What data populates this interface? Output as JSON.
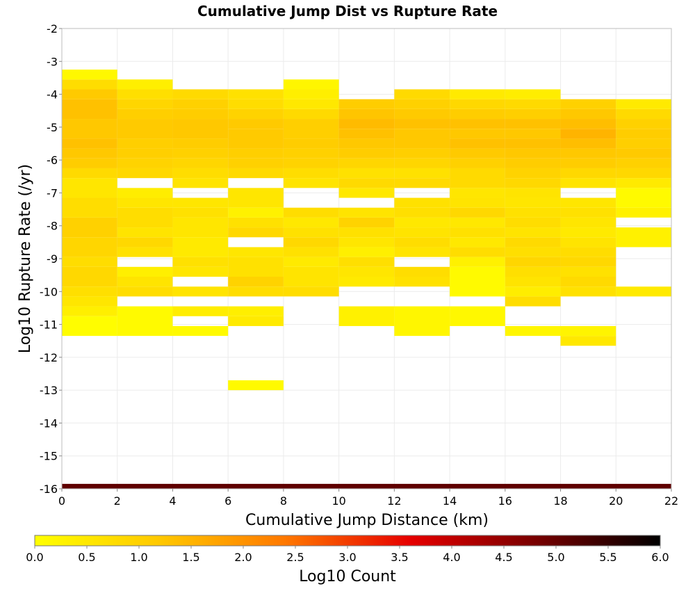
{
  "chart_data": {
    "type": "heatmap",
    "title": "Cumulative Jump Dist vs Rupture Rate",
    "xlabel": "Cumulative Jump Distance (km)",
    "ylabel": "Log10 Rupture Rate (/yr)",
    "xlim": [
      0,
      22
    ],
    "ylim": [
      -16,
      -2
    ],
    "x_ticks": [
      "0",
      "2",
      "4",
      "6",
      "8",
      "10",
      "12",
      "14",
      "16",
      "18",
      "20",
      "22"
    ],
    "y_ticks": [
      "-2",
      "-3",
      "-4",
      "-5",
      "-6",
      "-7",
      "-8",
      "-9",
      "-10",
      "-11",
      "-12",
      "-13",
      "-14",
      "-15",
      "-16"
    ],
    "x_bin_width": 2,
    "y_bin_height": 0.3,
    "grid": true,
    "colorbar": {
      "label": "Log10 Count",
      "min": 0.0,
      "max": 6.0,
      "ticks": [
        "0.0",
        "0.5",
        "1.0",
        "1.5",
        "2.0",
        "2.5",
        "3.0",
        "3.5",
        "4.0",
        "4.5",
        "5.0",
        "5.5",
        "6.0"
      ],
      "colors": [
        "#ffff00",
        "#ffc800",
        "#ff7800",
        "#e60000",
        "#780000",
        "#000000"
      ]
    },
    "bottom_band": {
      "x": [
        0,
        22
      ],
      "y": [
        -16.0,
        -15.85
      ],
      "log10_count": 5.05
    },
    "columns": [
      {
        "x": [
          0,
          2
        ],
        "cells": [
          [
            -11.35,
            -10.75,
            0.05
          ],
          [
            -10.75,
            -10.45,
            0.35
          ],
          [
            -10.45,
            -10.15,
            0.55
          ],
          [
            -10.15,
            -9.85,
            0.7
          ],
          [
            -9.85,
            -9.25,
            0.85
          ],
          [
            -9.25,
            -8.95,
            0.75
          ],
          [
            -8.95,
            -8.35,
            0.9
          ],
          [
            -8.35,
            -7.75,
            1.0
          ],
          [
            -7.75,
            -7.15,
            0.75
          ],
          [
            -7.15,
            -6.55,
            0.55
          ],
          [
            -6.55,
            -6.25,
            0.8
          ],
          [
            -6.25,
            -5.95,
            1.1
          ],
          [
            -5.95,
            -5.65,
            1.2
          ],
          [
            -5.65,
            -5.35,
            1.3
          ],
          [
            -5.35,
            -4.75,
            1.2
          ],
          [
            -4.75,
            -4.15,
            1.3
          ],
          [
            -4.15,
            -3.85,
            1.15
          ],
          [
            -3.85,
            -3.55,
            0.75
          ],
          [
            -3.55,
            -3.25,
            0.15
          ]
        ]
      },
      {
        "x": [
          2,
          4
        ],
        "cells": [
          [
            -11.35,
            -10.45,
            0.1
          ],
          [
            -10.15,
            -9.85,
            0.75
          ],
          [
            -9.85,
            -9.55,
            0.6
          ],
          [
            -9.55,
            -9.25,
            0.35
          ],
          [
            -8.95,
            -8.65,
            0.65
          ],
          [
            -8.65,
            -8.35,
            0.85
          ],
          [
            -8.35,
            -8.05,
            0.6
          ],
          [
            -8.05,
            -7.45,
            0.75
          ],
          [
            -7.45,
            -7.15,
            0.55
          ],
          [
            -7.15,
            -6.85,
            0.4
          ],
          [
            -6.55,
            -6.25,
            0.85
          ],
          [
            -6.25,
            -5.95,
            0.95
          ],
          [
            -5.95,
            -5.65,
            1.05
          ],
          [
            -5.65,
            -5.35,
            1.05
          ],
          [
            -5.35,
            -4.75,
            1.15
          ],
          [
            -4.75,
            -4.45,
            1.05
          ],
          [
            -4.45,
            -4.15,
            0.9
          ],
          [
            -4.15,
            -3.85,
            0.7
          ],
          [
            -3.85,
            -3.55,
            0.35
          ]
        ]
      },
      {
        "x": [
          4,
          6
        ],
        "cells": [
          [
            -11.35,
            -11.05,
            0.1
          ],
          [
            -10.75,
            -10.45,
            0.4
          ],
          [
            -10.15,
            -9.85,
            0.6
          ],
          [
            -9.55,
            -9.25,
            0.55
          ],
          [
            -9.25,
            -8.95,
            0.65
          ],
          [
            -8.95,
            -8.35,
            0.45
          ],
          [
            -8.35,
            -7.75,
            0.55
          ],
          [
            -7.75,
            -7.45,
            0.65
          ],
          [
            -7.45,
            -7.15,
            0.55
          ],
          [
            -6.85,
            -6.55,
            0.6
          ],
          [
            -6.55,
            -6.25,
            0.75
          ],
          [
            -6.25,
            -5.95,
            0.9
          ],
          [
            -5.95,
            -5.65,
            1.0
          ],
          [
            -5.65,
            -5.35,
            1.1
          ],
          [
            -5.35,
            -4.75,
            1.2
          ],
          [
            -4.75,
            -4.45,
            1.1
          ],
          [
            -4.45,
            -4.15,
            1.0
          ],
          [
            -4.15,
            -3.85,
            0.8
          ]
        ]
      },
      {
        "x": [
          6,
          8
        ],
        "cells": [
          [
            -13.0,
            -12.7,
            0.1
          ],
          [
            -11.05,
            -10.75,
            0.45
          ],
          [
            -10.75,
            -10.45,
            0.35
          ],
          [
            -10.15,
            -9.85,
            0.75
          ],
          [
            -9.85,
            -9.55,
            0.95
          ],
          [
            -9.55,
            -8.95,
            0.65
          ],
          [
            -8.95,
            -8.65,
            0.55
          ],
          [
            -8.35,
            -8.05,
            0.85
          ],
          [
            -8.05,
            -7.75,
            0.65
          ],
          [
            -7.75,
            -7.45,
            0.3
          ],
          [
            -7.45,
            -6.85,
            0.55
          ],
          [
            -6.55,
            -6.25,
            0.8
          ],
          [
            -6.25,
            -5.95,
            1.0
          ],
          [
            -5.95,
            -5.65,
            1.05
          ],
          [
            -5.65,
            -5.05,
            1.15
          ],
          [
            -5.05,
            -4.75,
            1.15
          ],
          [
            -4.75,
            -4.45,
            0.95
          ],
          [
            -4.45,
            -4.15,
            0.75
          ],
          [
            -4.15,
            -3.85,
            0.65
          ]
        ]
      },
      {
        "x": [
          8,
          10
        ],
        "cells": [
          [
            -10.15,
            -9.85,
            0.75
          ],
          [
            -9.85,
            -9.25,
            0.6
          ],
          [
            -9.25,
            -8.95,
            0.45
          ],
          [
            -8.95,
            -8.65,
            0.65
          ],
          [
            -8.65,
            -8.35,
            0.85
          ],
          [
            -8.35,
            -8.05,
            0.65
          ],
          [
            -8.05,
            -7.75,
            0.5
          ],
          [
            -7.75,
            -7.45,
            0.75
          ],
          [
            -6.85,
            -6.55,
            0.6
          ],
          [
            -6.55,
            -6.25,
            0.75
          ],
          [
            -6.25,
            -5.95,
            0.95
          ],
          [
            -5.95,
            -5.65,
            1.0
          ],
          [
            -5.65,
            -5.35,
            1.1
          ],
          [
            -5.35,
            -4.75,
            1.05
          ],
          [
            -4.75,
            -4.45,
            0.8
          ],
          [
            -4.45,
            -4.15,
            0.5
          ],
          [
            -4.15,
            -3.85,
            0.35
          ],
          [
            -3.85,
            -3.55,
            0.2
          ]
        ]
      },
      {
        "x": [
          10,
          12
        ],
        "cells": [
          [
            -11.05,
            -10.45,
            0.3
          ],
          [
            -9.85,
            -9.55,
            0.45
          ],
          [
            -9.55,
            -9.25,
            0.55
          ],
          [
            -9.25,
            -8.95,
            0.7
          ],
          [
            -8.95,
            -8.65,
            0.35
          ],
          [
            -8.65,
            -8.35,
            0.55
          ],
          [
            -8.35,
            -8.05,
            0.65
          ],
          [
            -8.05,
            -7.75,
            0.95
          ],
          [
            -7.75,
            -7.45,
            0.6
          ],
          [
            -7.15,
            -6.85,
            0.5
          ],
          [
            -6.85,
            -6.55,
            0.8
          ],
          [
            -6.55,
            -6.25,
            0.65
          ],
          [
            -6.25,
            -5.95,
            0.9
          ],
          [
            -5.95,
            -5.65,
            1.1
          ],
          [
            -5.65,
            -5.35,
            1.2
          ],
          [
            -5.35,
            -5.05,
            1.3
          ],
          [
            -5.05,
            -4.75,
            1.4
          ],
          [
            -4.75,
            -4.45,
            1.25
          ],
          [
            -4.45,
            -4.15,
            1.1
          ]
        ]
      },
      {
        "x": [
          12,
          14
        ],
        "cells": [
          [
            -11.35,
            -10.45,
            0.2
          ],
          [
            -9.85,
            -9.55,
            0.65
          ],
          [
            -9.55,
            -9.25,
            0.75
          ],
          [
            -8.95,
            -8.65,
            0.6
          ],
          [
            -8.65,
            -8.35,
            0.75
          ],
          [
            -8.35,
            -8.05,
            0.6
          ],
          [
            -8.05,
            -7.75,
            0.5
          ],
          [
            -7.75,
            -7.45,
            0.7
          ],
          [
            -7.45,
            -7.15,
            0.65
          ],
          [
            -6.85,
            -6.55,
            0.8
          ],
          [
            -6.55,
            -6.25,
            0.65
          ],
          [
            -6.25,
            -5.95,
            0.9
          ],
          [
            -5.95,
            -5.65,
            1.05
          ],
          [
            -5.65,
            -5.05,
            1.2
          ],
          [
            -5.05,
            -4.75,
            1.3
          ],
          [
            -4.75,
            -4.45,
            1.15
          ],
          [
            -4.45,
            -4.15,
            1.0
          ],
          [
            -4.15,
            -3.85,
            0.8
          ]
        ]
      },
      {
        "x": [
          14,
          16
        ],
        "cells": [
          [
            -11.05,
            -10.45,
            0.15
          ],
          [
            -10.15,
            -9.25,
            0.1
          ],
          [
            -9.25,
            -8.95,
            0.3
          ],
          [
            -8.95,
            -8.65,
            0.75
          ],
          [
            -8.65,
            -8.35,
            0.5
          ],
          [
            -8.35,
            -8.05,
            0.65
          ],
          [
            -8.05,
            -7.75,
            0.5
          ],
          [
            -7.75,
            -7.45,
            0.85
          ],
          [
            -7.45,
            -7.15,
            0.6
          ],
          [
            -7.15,
            -6.85,
            0.55
          ],
          [
            -6.85,
            -6.25,
            0.8
          ],
          [
            -6.25,
            -5.95,
            1.0
          ],
          [
            -5.95,
            -5.65,
            1.15
          ],
          [
            -5.65,
            -5.35,
            1.3
          ],
          [
            -5.35,
            -5.05,
            1.2
          ],
          [
            -5.05,
            -4.75,
            1.3
          ],
          [
            -4.75,
            -4.45,
            1.1
          ],
          [
            -4.45,
            -4.15,
            0.85
          ],
          [
            -4.15,
            -3.85,
            0.45
          ]
        ]
      },
      {
        "x": [
          16,
          18
        ],
        "cells": [
          [
            -11.35,
            -11.05,
            0.2
          ],
          [
            -10.45,
            -10.15,
            0.75
          ],
          [
            -10.15,
            -9.85,
            0.4
          ],
          [
            -9.85,
            -9.55,
            0.6
          ],
          [
            -9.55,
            -9.25,
            0.7
          ],
          [
            -9.25,
            -8.95,
            0.9
          ],
          [
            -8.95,
            -8.65,
            0.7
          ],
          [
            -8.65,
            -8.35,
            0.8
          ],
          [
            -8.35,
            -8.05,
            0.6
          ],
          [
            -8.05,
            -7.75,
            0.75
          ],
          [
            -7.75,
            -7.45,
            0.65
          ],
          [
            -7.45,
            -7.15,
            0.55
          ],
          [
            -7.15,
            -6.85,
            0.6
          ],
          [
            -6.85,
            -6.55,
            0.85
          ],
          [
            -6.55,
            -6.25,
            0.95
          ],
          [
            -6.25,
            -5.95,
            1.1
          ],
          [
            -5.95,
            -5.65,
            1.2
          ],
          [
            -5.65,
            -5.35,
            1.3
          ],
          [
            -5.35,
            -5.05,
            1.2
          ],
          [
            -5.05,
            -4.75,
            1.3
          ],
          [
            -4.75,
            -4.45,
            1.05
          ],
          [
            -4.45,
            -4.15,
            0.8
          ],
          [
            -4.15,
            -3.85,
            0.4
          ]
        ]
      },
      {
        "x": [
          18,
          20
        ],
        "cells": [
          [
            -11.65,
            -11.35,
            0.5
          ],
          [
            -11.35,
            -11.05,
            0.25
          ],
          [
            -10.15,
            -9.85,
            0.65
          ],
          [
            -9.85,
            -9.55,
            0.8
          ],
          [
            -9.55,
            -9.25,
            0.65
          ],
          [
            -9.25,
            -8.95,
            0.85
          ],
          [
            -8.95,
            -8.65,
            0.75
          ],
          [
            -8.65,
            -8.35,
            0.6
          ],
          [
            -8.35,
            -8.05,
            0.45
          ],
          [
            -8.05,
            -7.75,
            0.55
          ],
          [
            -7.75,
            -7.45,
            0.65
          ],
          [
            -7.45,
            -7.15,
            0.55
          ],
          [
            -6.85,
            -6.55,
            0.6
          ],
          [
            -6.55,
            -6.25,
            0.85
          ],
          [
            -6.25,
            -5.95,
            1.1
          ],
          [
            -5.95,
            -5.65,
            1.2
          ],
          [
            -5.65,
            -5.35,
            1.35
          ],
          [
            -5.35,
            -5.05,
            1.5
          ],
          [
            -5.05,
            -4.75,
            1.35
          ],
          [
            -4.75,
            -4.45,
            1.2
          ],
          [
            -4.45,
            -4.15,
            1.0
          ]
        ]
      },
      {
        "x": [
          20,
          22
        ],
        "cells": [
          [
            -10.15,
            -9.85,
            0.45
          ],
          [
            -8.65,
            -8.05,
            0.3
          ],
          [
            -7.75,
            -7.45,
            0.3
          ],
          [
            -7.45,
            -6.85,
            0.1
          ],
          [
            -6.85,
            -6.55,
            0.45
          ],
          [
            -6.55,
            -6.25,
            0.85
          ],
          [
            -6.25,
            -5.95,
            1.0
          ],
          [
            -5.95,
            -5.65,
            1.15
          ],
          [
            -5.65,
            -5.35,
            1.05
          ],
          [
            -5.35,
            -5.05,
            1.1
          ],
          [
            -5.05,
            -4.75,
            1.0
          ],
          [
            -4.75,
            -4.45,
            0.8
          ],
          [
            -4.45,
            -4.15,
            0.45
          ]
        ]
      }
    ]
  }
}
